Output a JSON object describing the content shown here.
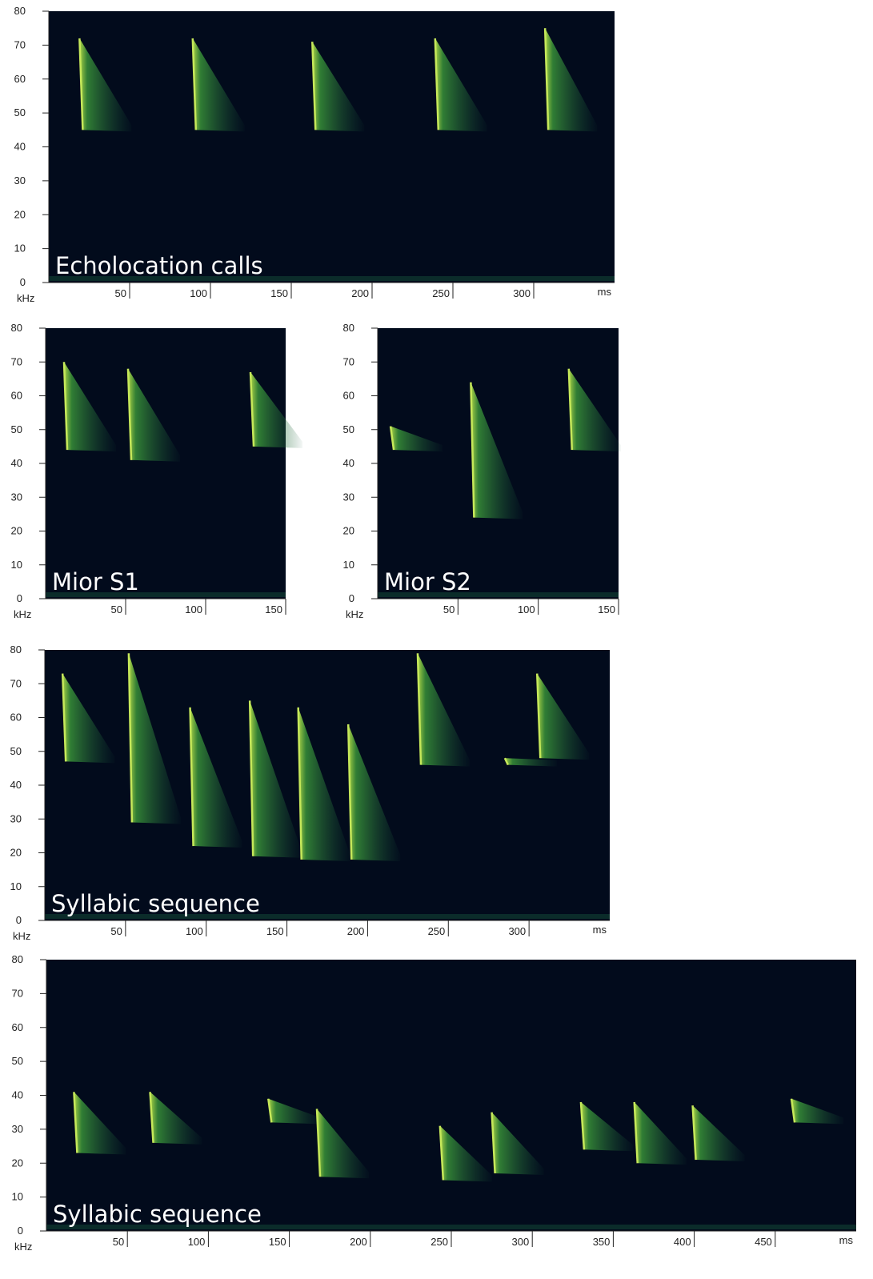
{
  "chart_data": [
    {
      "type": "spectrogram",
      "annotation": "Echolocation calls",
      "ylabel": "kHz",
      "xlabel": "ms",
      "ylim": [
        0,
        80
      ],
      "yticks": [
        0,
        10,
        20,
        30,
        40,
        50,
        60,
        70,
        80
      ],
      "xlim": [
        0,
        350
      ],
      "xticks": [
        50,
        100,
        150,
        200,
        250,
        300
      ],
      "calls": {
        "x": [
          19,
          89,
          163,
          239,
          307
        ],
        "high": [
          72,
          72,
          71,
          72,
          75
        ],
        "low": [
          45,
          45,
          45,
          45,
          45
        ]
      }
    },
    {
      "type": "spectrogram",
      "annotation": "Mior S1",
      "ylabel": "kHz",
      "ylim": [
        0,
        80
      ],
      "yticks": [
        0,
        10,
        20,
        30,
        40,
        50,
        60,
        70,
        80
      ],
      "xlim": [
        0,
        150
      ],
      "xticks": [
        50,
        100,
        150
      ],
      "calls": {
        "x": [
          11.5,
          51.5,
          128
        ],
        "high": [
          70,
          68,
          67
        ],
        "low": [
          44,
          41,
          45
        ]
      }
    },
    {
      "type": "spectrogram",
      "annotation": "Mior S2",
      "ylabel": "kHz",
      "ylim": [
        0,
        80
      ],
      "yticks": [
        0,
        10,
        20,
        30,
        40,
        50,
        60,
        70,
        80
      ],
      "xlim": [
        0,
        150
      ],
      "xticks": [
        50,
        100,
        150
      ],
      "calls": {
        "x": [
          8,
          58,
          119
        ],
        "high": [
          51,
          64,
          68
        ],
        "low": [
          44,
          24,
          44
        ]
      }
    },
    {
      "type": "spectrogram",
      "annotation": "Syllabic sequence",
      "ylabel": "kHz",
      "xlabel": "ms",
      "ylim": [
        0,
        80
      ],
      "yticks": [
        0,
        10,
        20,
        30,
        40,
        50,
        60,
        70,
        80
      ],
      "xlim": [
        0,
        350
      ],
      "xticks": [
        50,
        100,
        150,
        200,
        250,
        300
      ],
      "calls": {
        "x": [
          11,
          52,
          90,
          127,
          157,
          188,
          231,
          285,
          305
        ],
        "high": [
          73,
          79,
          63,
          65,
          63,
          58,
          79,
          48,
          73
        ],
        "low": [
          47,
          29,
          22,
          19,
          18,
          18,
          46,
          46,
          48
        ]
      }
    },
    {
      "type": "spectrogram",
      "annotation": "Syllabic sequence",
      "ylabel": "kHz",
      "xlabel": "ms",
      "ylim": [
        0,
        80
      ],
      "yticks": [
        0,
        10,
        20,
        30,
        40,
        50,
        60,
        70,
        80
      ],
      "xlim": [
        0,
        500
      ],
      "xticks": [
        50,
        100,
        150,
        200,
        250,
        300,
        350,
        400,
        450
      ],
      "calls": {
        "x": [
          17,
          64,
          137,
          167,
          243,
          275,
          330,
          363,
          399,
          460
        ],
        "high": [
          41,
          41,
          39,
          36,
          31,
          35,
          38,
          38,
          37,
          39
        ],
        "low": [
          23,
          26,
          32,
          16,
          15,
          17,
          24,
          20,
          21,
          32
        ]
      }
    }
  ]
}
